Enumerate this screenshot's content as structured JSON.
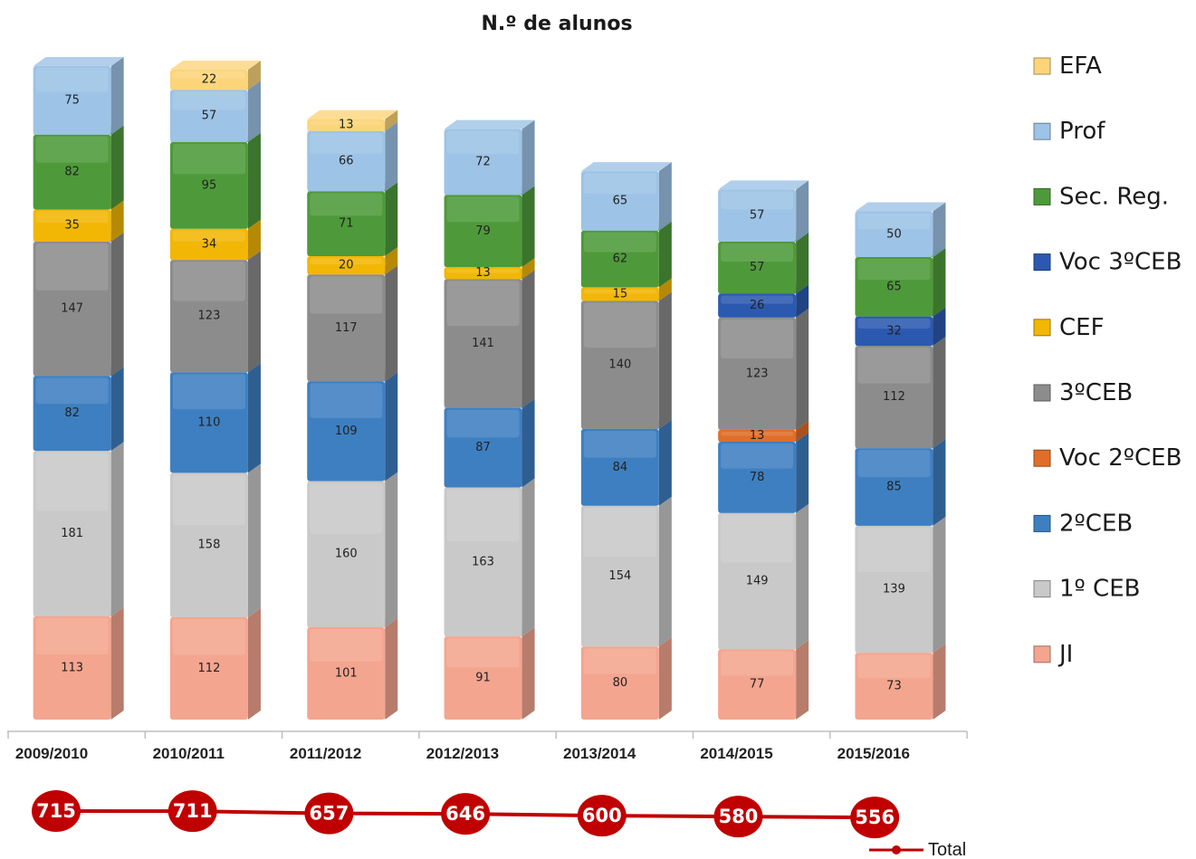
{
  "chart_data": {
    "type": "bar",
    "stacked": true,
    "title": "N.º de alunos",
    "categories": [
      "2009/2010",
      "2010/2011",
      "2011/2012",
      "2012/2013",
      "2013/2014",
      "2014/2015",
      "2015/2016"
    ],
    "series": [
      {
        "name": "JI",
        "color": "#f4a58f",
        "values": [
          113,
          112,
          101,
          91,
          80,
          77,
          73
        ]
      },
      {
        "name": "1º CEB",
        "color": "#c9c9c9",
        "values": [
          181,
          158,
          160,
          163,
          154,
          149,
          139
        ]
      },
      {
        "name": "2ºCEB",
        "color": "#3e7fc1",
        "values": [
          82,
          110,
          109,
          87,
          84,
          78,
          85
        ]
      },
      {
        "name": "Voc 2ºCEB",
        "color": "#e06e28",
        "values": [
          null,
          null,
          null,
          null,
          null,
          13,
          null
        ]
      },
      {
        "name": "3ºCEB",
        "color": "#8c8c8c",
        "values": [
          147,
          123,
          117,
          141,
          140,
          123,
          112
        ]
      },
      {
        "name": "CEF",
        "color": "#f2b705",
        "values": [
          35,
          34,
          20,
          13,
          15,
          null,
          null
        ]
      },
      {
        "name": "Voc 3ºCEB",
        "color": "#2c59b0",
        "values": [
          null,
          null,
          null,
          null,
          null,
          26,
          32
        ]
      },
      {
        "name": "Sec. Reg.",
        "color": "#4e9a3a",
        "values": [
          82,
          95,
          71,
          79,
          62,
          57,
          65
        ]
      },
      {
        "name": "Prof",
        "color": "#9dc3e6",
        "values": [
          75,
          57,
          66,
          72,
          65,
          57,
          50
        ]
      },
      {
        "name": "EFA",
        "color": "#fcd57a",
        "values": [
          null,
          22,
          13,
          null,
          null,
          null,
          null
        ]
      }
    ],
    "legend_order": [
      "EFA",
      "Prof",
      "Sec. Reg.",
      "Voc 3ºCEB",
      "CEF",
      "3ºCEB",
      "Voc 2ºCEB",
      "2ºCEB",
      "1º CEB",
      "JI"
    ],
    "legend_position": "right",
    "total_series": {
      "name": "Total",
      "color": "#c00000",
      "values": [
        715,
        711,
        657,
        646,
        600,
        580,
        556
      ]
    }
  }
}
